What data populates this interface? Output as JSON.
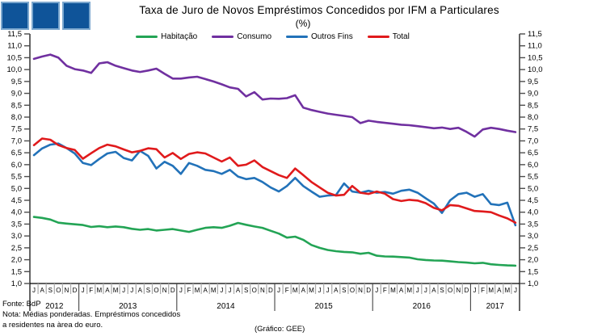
{
  "header": {
    "title": "Taxa de Juro de Novos Empréstimos Concedidos por IFM a Particulares",
    "subtitle": "(%)"
  },
  "colors": {
    "logo_blue": "#0F5499",
    "logo_border": "#7BA7CE",
    "axis": "#000000",
    "month_separator": "#ADADAD",
    "year_separator": "#444444",
    "tick": "#4D4D4D"
  },
  "footer": {
    "fonte": "Fonte: BdP",
    "nota_line1": "Nota: Médias ponderadas. Empréstimos concedidos",
    "nota_line2": "a residentes na àrea do euro.",
    "grafico": "(Gráfico: GEE)"
  },
  "chart_data": {
    "type": "line",
    "title": "Taxa de Juro de Novos Empréstimos Concedidos por IFM a Particulares",
    "unit": "%",
    "ylim": [
      1.0,
      11.5
    ],
    "ytick_step": 0.5,
    "grid": false,
    "legend_position": "top",
    "x_months": [
      "J",
      "A",
      "S",
      "O",
      "N",
      "D",
      "J",
      "F",
      "M",
      "A",
      "M",
      "J",
      "J",
      "A",
      "S",
      "O",
      "N",
      "D",
      "J",
      "F",
      "M",
      "A",
      "M",
      "J",
      "J",
      "A",
      "S",
      "O",
      "N",
      "D",
      "J",
      "F",
      "M",
      "A",
      "M",
      "J",
      "J",
      "A",
      "S",
      "O",
      "N",
      "D",
      "J",
      "F",
      "M",
      "A",
      "M",
      "J",
      "J",
      "A",
      "S",
      "O",
      "N",
      "D",
      "J",
      "F",
      "M",
      "A",
      "M",
      "J"
    ],
    "years": [
      {
        "label": "2012",
        "start": 0,
        "end": 5
      },
      {
        "label": "2013",
        "start": 6,
        "end": 17
      },
      {
        "label": "2014",
        "start": 18,
        "end": 29
      },
      {
        "label": "2015",
        "start": 30,
        "end": 41
      },
      {
        "label": "2016",
        "start": 42,
        "end": 53
      },
      {
        "label": "2017",
        "start": 54,
        "end": 59
      }
    ],
    "series": [
      {
        "id": "habitacao",
        "name": "Habitação",
        "color": "#23A455",
        "values": [
          3.8,
          3.76,
          3.69,
          3.56,
          3.52,
          3.49,
          3.46,
          3.38,
          3.41,
          3.37,
          3.4,
          3.37,
          3.3,
          3.26,
          3.29,
          3.23,
          3.26,
          3.29,
          3.23,
          3.17,
          3.26,
          3.34,
          3.37,
          3.34,
          3.43,
          3.55,
          3.47,
          3.4,
          3.34,
          3.22,
          3.1,
          2.93,
          2.97,
          2.84,
          2.62,
          2.5,
          2.41,
          2.36,
          2.33,
          2.31,
          2.25,
          2.29,
          2.17,
          2.14,
          2.13,
          2.11,
          2.09,
          2.02,
          1.99,
          1.97,
          1.96,
          1.93,
          1.9,
          1.88,
          1.85,
          1.87,
          1.81,
          1.78,
          1.76,
          1.75
        ]
      },
      {
        "id": "consumo",
        "name": "Consumo",
        "color": "#7030A0",
        "values": [
          10.45,
          10.55,
          10.63,
          10.5,
          10.16,
          10.02,
          9.96,
          9.86,
          10.26,
          10.31,
          10.16,
          10.06,
          9.96,
          9.9,
          9.96,
          10.04,
          9.82,
          9.62,
          9.62,
          9.67,
          9.7,
          9.6,
          9.5,
          9.38,
          9.25,
          9.19,
          8.87,
          9.05,
          8.74,
          8.78,
          8.77,
          8.8,
          8.92,
          8.4,
          8.3,
          8.22,
          8.15,
          8.1,
          8.05,
          8.0,
          7.75,
          7.85,
          7.8,
          7.76,
          7.72,
          7.68,
          7.66,
          7.62,
          7.58,
          7.53,
          7.56,
          7.5,
          7.55,
          7.38,
          7.18,
          7.48,
          7.55,
          7.5,
          7.43,
          7.37
        ]
      },
      {
        "id": "outros-fins",
        "name": "Outros Fins",
        "color": "#2272B9",
        "values": [
          6.4,
          6.68,
          6.84,
          6.89,
          6.7,
          6.47,
          6.07,
          5.98,
          6.24,
          6.47,
          6.54,
          6.28,
          6.18,
          6.58,
          6.37,
          5.84,
          6.12,
          5.95,
          5.61,
          6.07,
          5.95,
          5.78,
          5.73,
          5.61,
          5.78,
          5.5,
          5.39,
          5.44,
          5.27,
          5.04,
          4.87,
          5.1,
          5.44,
          5.1,
          4.87,
          4.65,
          4.7,
          4.72,
          5.21,
          4.87,
          4.82,
          4.9,
          4.82,
          4.85,
          4.78,
          4.9,
          4.95,
          4.82,
          4.59,
          4.36,
          3.97,
          4.5,
          4.76,
          4.82,
          4.65,
          4.76,
          4.34,
          4.3,
          4.4,
          3.45
        ]
      },
      {
        "id": "total",
        "name": "Total",
        "color": "#E01A1C",
        "values": [
          6.82,
          7.1,
          7.05,
          6.82,
          6.7,
          6.62,
          6.25,
          6.48,
          6.7,
          6.84,
          6.77,
          6.64,
          6.52,
          6.58,
          6.69,
          6.65,
          6.3,
          6.49,
          6.24,
          6.45,
          6.52,
          6.47,
          6.3,
          6.13,
          6.3,
          5.95,
          6.0,
          6.18,
          5.9,
          5.73,
          5.56,
          5.44,
          5.84,
          5.56,
          5.27,
          5.04,
          4.82,
          4.7,
          4.73,
          5.1,
          4.82,
          4.77,
          4.87,
          4.78,
          4.55,
          4.47,
          4.52,
          4.49,
          4.38,
          4.18,
          4.08,
          4.3,
          4.27,
          4.16,
          4.05,
          4.03,
          4.0,
          3.86,
          3.74,
          3.56
        ]
      }
    ]
  }
}
